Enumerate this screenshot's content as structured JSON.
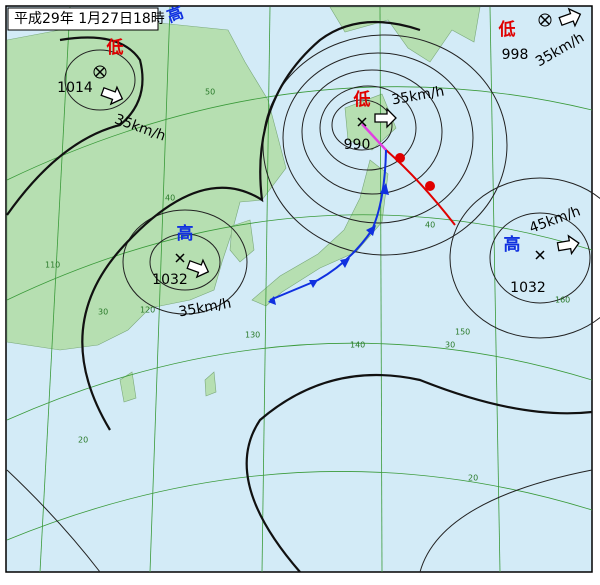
{
  "header": {
    "title": "平成29年 1月27日18時",
    "mark": "高"
  },
  "systems": [
    {
      "kind": "低",
      "pressure": 1014,
      "speed": "35km/h"
    },
    {
      "kind": "高",
      "pressure": 1032,
      "speed": "35km/h"
    },
    {
      "kind": "低",
      "pressure": 990,
      "speed": "35km/h"
    },
    {
      "kind": "低",
      "pressure": 998,
      "speed": "35km/h"
    },
    {
      "kind": "高",
      "pressure": 1032,
      "speed": "45km/h"
    }
  ],
  "grid_labels": [
    "50",
    "40",
    "30",
    "20",
    "110",
    "120",
    "130",
    "140",
    "150",
    "160",
    "30",
    "20",
    "40"
  ]
}
